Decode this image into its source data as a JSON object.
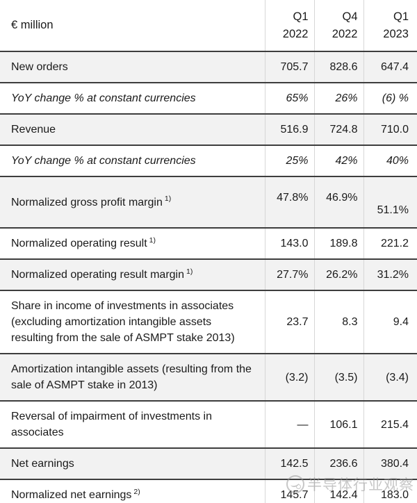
{
  "theme": {
    "stripe_bg": "#f2f2f2",
    "row_border": "#3d3d3d",
    "column_border": "#d6d6d6",
    "text": "#1a1a1a",
    "watermark_color": "#9a9a9a"
  },
  "table": {
    "unit_label": "€ million",
    "columns": [
      {
        "quarter": "Q1",
        "year": "2022"
      },
      {
        "quarter": "Q4",
        "year": "2022"
      },
      {
        "quarter": "Q1",
        "year": "2023"
      }
    ],
    "rows": [
      {
        "label": "New orders",
        "sup": "",
        "q1_2022": "705.7",
        "q4_2022": "828.6",
        "q1_2023": "647.4"
      },
      {
        "label": "YoY change % at constant currencies",
        "sup": "",
        "q1_2022": "65%",
        "q4_2022": "26%",
        "q1_2023": "(6) %"
      },
      {
        "label": "Revenue",
        "sup": "",
        "q1_2022": "516.9",
        "q4_2022": "724.8",
        "q1_2023": "710.0"
      },
      {
        "label": "YoY change % at constant currencies",
        "sup": "",
        "q1_2022": "25%",
        "q4_2022": "42%",
        "q1_2023": "40%"
      },
      {
        "label": "Normalized gross profit margin",
        "sup": "1)",
        "q1_2022": "47.8%",
        "q4_2022": "46.9%",
        "q1_2023": "51.1%"
      },
      {
        "label": "Normalized operating result",
        "sup": "1)",
        "q1_2022": "143.0",
        "q4_2022": "189.8",
        "q1_2023": "221.2"
      },
      {
        "label": "Normalized operating result margin",
        "sup": "1)",
        "q1_2022": "27.7%",
        "q4_2022": "26.2%",
        "q1_2023": "31.2%"
      },
      {
        "label": "Share in income of investments in associates (excluding amortization intangible assets resulting from the sale of ASMPT stake 2013)",
        "sup": "",
        "q1_2022": "23.7",
        "q4_2022": "8.3",
        "q1_2023": "9.4"
      },
      {
        "label": "Amortization intangible assets (resulting from the sale of ASMPT stake in 2013)",
        "sup": "",
        "q1_2022": "(3.2)",
        "q4_2022": "(3.5)",
        "q1_2023": "(3.4)"
      },
      {
        "label": "Reversal of impairment of investments in associates",
        "sup": "",
        "q1_2022": "—",
        "q4_2022": "106.1",
        "q1_2023": "215.4"
      },
      {
        "label": "Net earnings",
        "sup": "",
        "q1_2022": "142.5",
        "q4_2022": "236.6",
        "q1_2023": "380.4"
      },
      {
        "label": "Normalized net earnings",
        "sup": "2)",
        "q1_2022": "145.7",
        "q4_2022": "142.4",
        "q1_2023": "183.0"
      }
    ]
  },
  "watermark": {
    "text": "半导体行业观察",
    "icon": "watermark-logo-icon"
  }
}
